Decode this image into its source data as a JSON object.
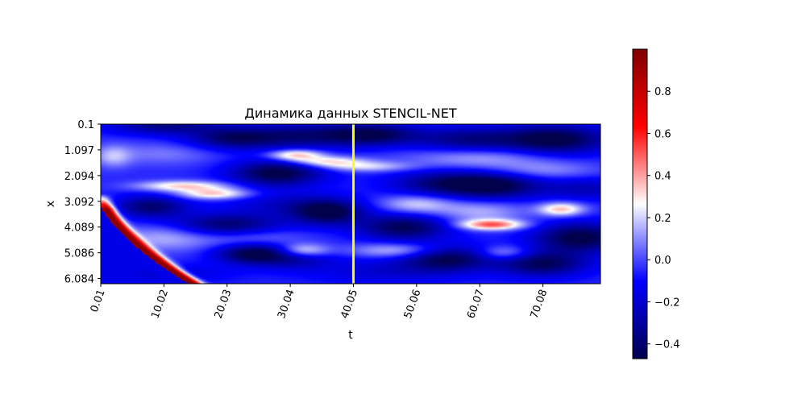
{
  "chart_data": {
    "type": "heatmap",
    "title": "Динамика данных STENCIL-NET",
    "xlabel": "t",
    "ylabel": "x",
    "x_ticks": [
      "0.01",
      "10.02",
      "20.03",
      "30.04",
      "40.05",
      "50.06",
      "60.07",
      "70.08"
    ],
    "y_ticks": [
      "0.1",
      "1.097",
      "2.094",
      "3.092",
      "4.089",
      "5.086",
      "6.084"
    ],
    "xlim": [
      0.01,
      79.2
    ],
    "ylim": [
      6.284,
      0.1
    ],
    "vline": {
      "t": 40.05,
      "color": "#ffff00"
    },
    "colorbar": {
      "colormap": "seismic",
      "vmin": -0.47,
      "vmax": 1.0,
      "ticks": [
        "0.8",
        "0.6",
        "0.4",
        "0.2",
        "0.0",
        "−0.2",
        "−0.4"
      ],
      "tick_values": [
        0.8,
        0.6,
        0.4,
        0.2,
        0.0,
        -0.2,
        -0.4
      ]
    },
    "field": {
      "background": -0.05,
      "features": [
        {
          "t": 10,
          "x": 0.15,
          "value": -0.3,
          "st": 6,
          "sx": 0.25
        },
        {
          "t": 21,
          "x": 0.65,
          "value": -0.35,
          "st": 5,
          "sx": 0.3
        },
        {
          "t": 32,
          "x": 0.55,
          "value": -0.3,
          "st": 6,
          "sx": 0.35
        },
        {
          "t": 43,
          "x": 0.5,
          "value": -0.4,
          "st": 5,
          "sx": 0.3
        },
        {
          "t": 58,
          "x": 0.7,
          "value": -0.3,
          "st": 6,
          "sx": 0.35
        },
        {
          "t": 72,
          "x": 0.7,
          "value": -0.45,
          "st": 6,
          "sx": 0.4
        },
        {
          "t": 2,
          "x": 1.35,
          "value": 0.2,
          "st": 2,
          "sx": 0.3
        },
        {
          "t": 10,
          "x": 1.25,
          "value": 0.12,
          "st": 6,
          "sx": 0.3
        },
        {
          "t": 31,
          "x": 1.3,
          "value": 0.45,
          "st": 3,
          "sx": 0.15
        },
        {
          "t": 36,
          "x": 1.55,
          "value": 0.35,
          "st": 4,
          "sx": 0.14
        },
        {
          "t": 42,
          "x": 1.75,
          "value": 0.25,
          "st": 5,
          "sx": 0.14
        },
        {
          "t": 60,
          "x": 1.4,
          "value": 0.2,
          "st": 8,
          "sx": 0.3
        },
        {
          "t": 70,
          "x": 1.9,
          "value": 0.15,
          "st": 6,
          "sx": 0.25
        },
        {
          "t": 28,
          "x": 2.0,
          "value": -0.45,
          "st": 5,
          "sx": 0.35
        },
        {
          "t": 55,
          "x": 2.4,
          "value": -0.35,
          "st": 6,
          "sx": 0.35
        },
        {
          "t": 63,
          "x": 2.5,
          "value": -0.35,
          "st": 5,
          "sx": 0.35
        },
        {
          "t": 77,
          "x": 2.6,
          "value": -0.2,
          "st": 5,
          "sx": 0.3
        },
        {
          "t": 13,
          "x": 2.5,
          "value": 0.38,
          "st": 5,
          "sx": 0.14
        },
        {
          "t": 18,
          "x": 2.8,
          "value": 0.4,
          "st": 4,
          "sx": 0.15
        },
        {
          "t": 8,
          "x": 3.3,
          "value": -0.35,
          "st": 4,
          "sx": 0.3
        },
        {
          "t": 28,
          "x": 3.2,
          "value": -0.15,
          "st": 6,
          "sx": 0.35
        },
        {
          "t": 36,
          "x": 3.5,
          "value": -0.45,
          "st": 4,
          "sx": 0.35
        },
        {
          "t": 50,
          "x": 3.2,
          "value": 0.25,
          "st": 4,
          "sx": 0.25
        },
        {
          "t": 60,
          "x": 3.5,
          "value": 0.2,
          "st": 5,
          "sx": 0.3
        },
        {
          "t": 73,
          "x": 3.4,
          "value": 0.42,
          "st": 2.5,
          "sx": 0.18
        },
        {
          "t": 20,
          "x": 4.0,
          "value": -0.35,
          "st": 6,
          "sx": 0.3
        },
        {
          "t": 48,
          "x": 4.1,
          "value": -0.4,
          "st": 5,
          "sx": 0.35
        },
        {
          "t": 62,
          "x": 4.0,
          "value": 0.55,
          "st": 3.5,
          "sx": 0.14
        },
        {
          "t": 76,
          "x": 4.5,
          "value": -0.45,
          "st": 5,
          "sx": 0.4
        },
        {
          "t": 10,
          "x": 4.5,
          "value": 0.2,
          "st": 5,
          "sx": 0.35
        },
        {
          "t": 25,
          "x": 4.6,
          "value": 0.18,
          "st": 6,
          "sx": 0.3
        },
        {
          "t": 24,
          "x": 5.1,
          "value": -0.45,
          "st": 4,
          "sx": 0.3
        },
        {
          "t": 31,
          "x": 5.15,
          "value": -0.3,
          "st": 4,
          "sx": 0.35
        },
        {
          "t": 32,
          "x": 5.0,
          "value": 0.45,
          "st": 3,
          "sx": 0.2
        },
        {
          "t": 47,
          "x": 5.0,
          "value": 0.25,
          "st": 5,
          "sx": 0.2
        },
        {
          "t": 55,
          "x": 5.3,
          "value": -0.4,
          "st": 5,
          "sx": 0.35
        },
        {
          "t": 64,
          "x": 5.1,
          "value": 0.25,
          "st": 3,
          "sx": 0.2
        },
        {
          "t": 70,
          "x": 5.5,
          "value": -0.4,
          "st": 5,
          "sx": 0.35
        },
        {
          "t": 45,
          "x": 5.8,
          "value": -0.15,
          "st": 8,
          "sx": 0.35
        },
        {
          "t": 10,
          "x": 5.9,
          "value": -0.15,
          "st": 7,
          "sx": 0.25
        }
      ],
      "wave": {
        "t_span": 14.5,
        "x_at_t0": 2.8,
        "value": 1.0
      }
    }
  }
}
